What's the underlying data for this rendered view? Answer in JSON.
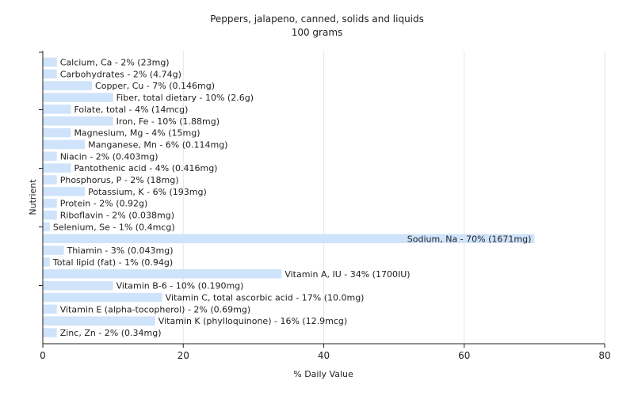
{
  "chart_data": {
    "type": "bar",
    "orientation": "horizontal",
    "title": "Peppers, jalapeno, canned, solids and liquids",
    "subtitle": "100 grams",
    "xlabel": "% Daily Value",
    "ylabel": "Nutrient",
    "xlim": [
      0,
      80
    ],
    "xticks": [
      0,
      20,
      40,
      60,
      80
    ],
    "grid": true,
    "bar_color": "#cfe3fb",
    "categories": [
      "Calcium, Ca",
      "Carbohydrates",
      "Copper, Cu",
      "Fiber, total dietary",
      "Folate, total",
      "Iron, Fe",
      "Magnesium, Mg",
      "Manganese, Mn",
      "Niacin",
      "Pantothenic acid",
      "Phosphorus, P",
      "Potassium, K",
      "Protein",
      "Riboflavin",
      "Selenium, Se",
      "Sodium, Na",
      "Thiamin",
      "Total lipid (fat)",
      "Vitamin A, IU",
      "Vitamin B-6",
      "Vitamin C, total ascorbic acid",
      "Vitamin E (alpha-tocopherol)",
      "Vitamin K (phylloquinone)",
      "Zinc, Zn"
    ],
    "values": [
      2,
      2,
      7,
      10,
      4,
      10,
      4,
      6,
      2,
      4,
      2,
      6,
      2,
      2,
      1,
      70,
      3,
      1,
      34,
      10,
      17,
      2,
      16,
      2
    ],
    "labels": [
      "Calcium, Ca - 2% (23mg)",
      "Carbohydrates - 2% (4.74g)",
      "Copper, Cu - 7% (0.146mg)",
      "Fiber, total dietary - 10% (2.6g)",
      "Folate, total - 4% (14mcg)",
      "Iron, Fe - 10% (1.88mg)",
      "Magnesium, Mg - 4% (15mg)",
      "Manganese, Mn - 6% (0.114mg)",
      "Niacin - 2% (0.403mg)",
      "Pantothenic acid - 4% (0.416mg)",
      "Phosphorus, P - 2% (18mg)",
      "Potassium, K - 6% (193mg)",
      "Protein - 2% (0.92g)",
      "Riboflavin - 2% (0.038mg)",
      "Selenium, Se - 1% (0.4mcg)",
      "Sodium, Na - 70% (1671mg)",
      "Thiamin - 3% (0.043mg)",
      "Total lipid (fat) - 1% (0.94g)",
      "Vitamin A, IU - 34% (1700IU)",
      "Vitamin B-6 - 10% (0.190mg)",
      "Vitamin C, total ascorbic acid - 17% (10.0mg)",
      "Vitamin E (alpha-tocopherol) - 2% (0.69mg)",
      "Vitamin K (phylloquinone) - 16% (12.9mcg)",
      "Zinc, Zn - 2% (0.34mg)"
    ]
  }
}
